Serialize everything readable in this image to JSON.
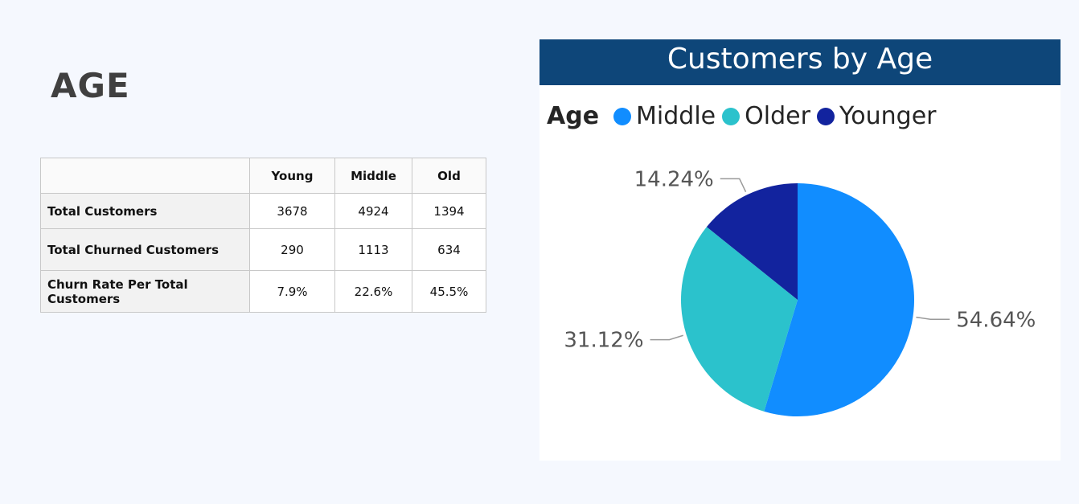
{
  "page": {
    "title": "AGE"
  },
  "table": {
    "headers": [
      "",
      "Young",
      "Middle",
      "Old"
    ],
    "rows": [
      {
        "label": "Total Customers",
        "values": [
          "3678",
          "4924",
          "1394"
        ]
      },
      {
        "label": "Total Churned Customers",
        "values": [
          "290",
          "1113",
          "634"
        ]
      },
      {
        "label": "Churn Rate Per Total Customers",
        "values": [
          "7.9%",
          "22.6%",
          "45.5%"
        ]
      }
    ]
  },
  "chart_data": {
    "type": "pie",
    "title": "Customers by Age",
    "legend_title": "Age",
    "legend_position": "top-left",
    "categories": [
      "Middle",
      "Older",
      "Younger"
    ],
    "values": [
      54.64,
      31.12,
      14.24
    ],
    "labels": [
      "54.64%",
      "31.12%",
      "14.24%"
    ],
    "colors": [
      "#118dff",
      "#2bc2cc",
      "#12239e"
    ]
  }
}
